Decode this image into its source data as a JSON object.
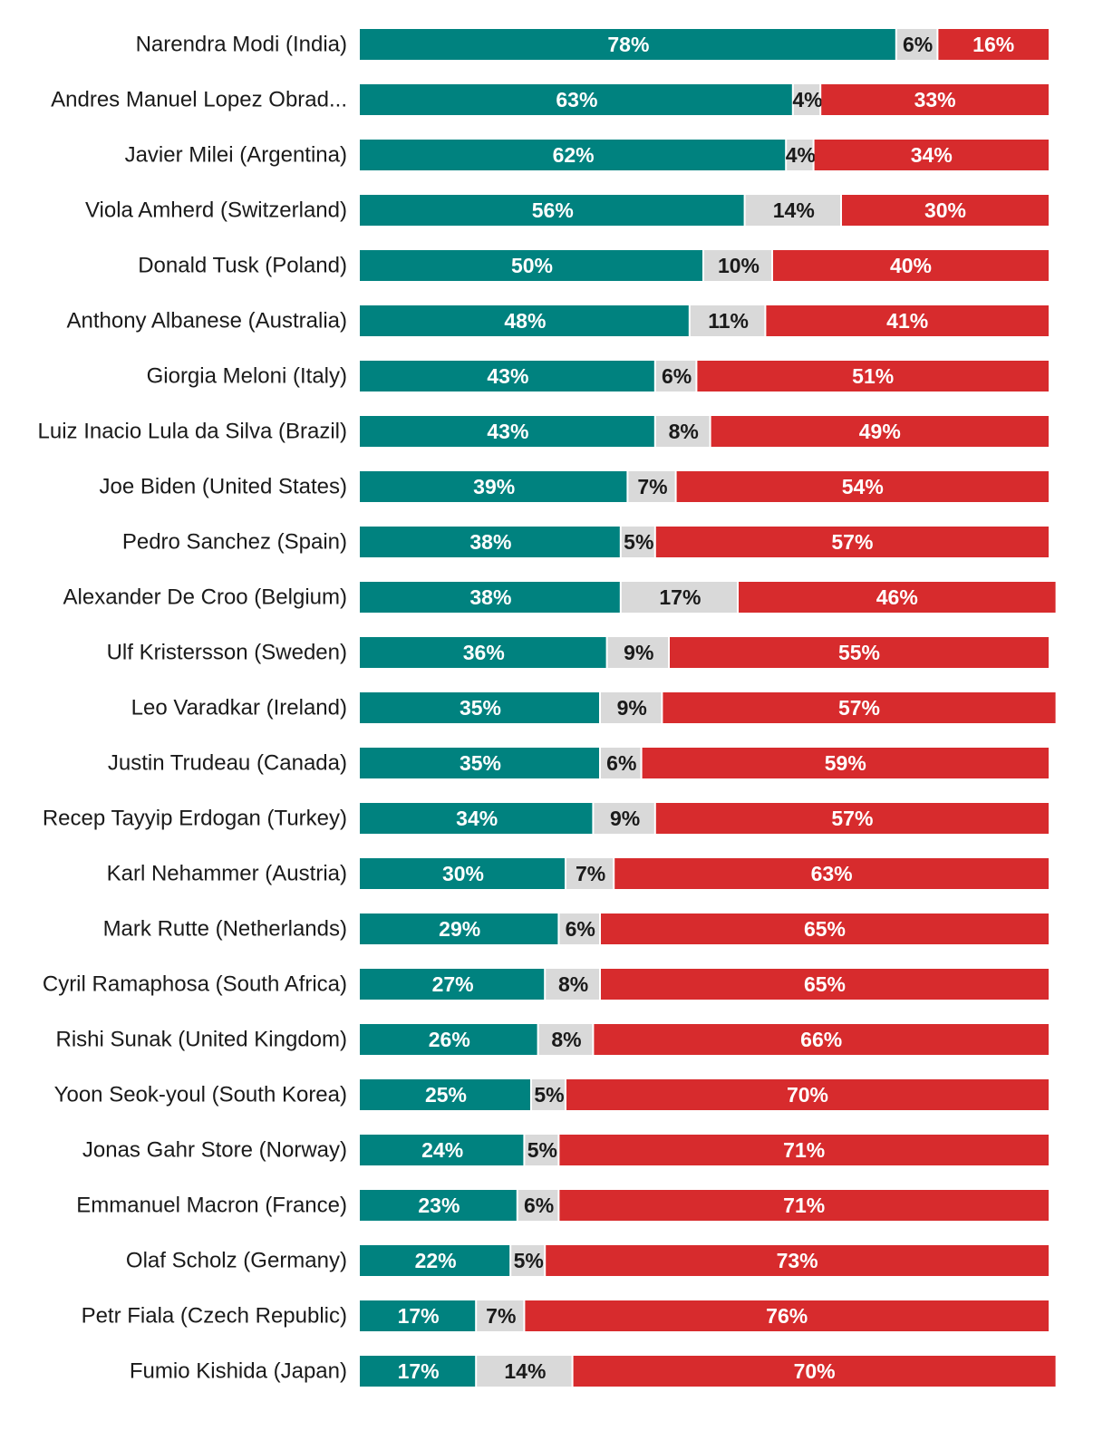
{
  "colors": {
    "approve": "#00827F",
    "unsure": "#D9D9D9",
    "disapprove": "#D72B2D",
    "label_on_dark": "#FFFFFF",
    "label_on_light": "#1A1A1A"
  },
  "chart_data": {
    "type": "bar",
    "orientation": "horizontal",
    "stacked": true,
    "normalized": true,
    "grid": false,
    "legend": "none",
    "title": "",
    "xlabel": "",
    "ylabel": "",
    "xlim": [
      0,
      100
    ],
    "categories": [
      "Narendra Modi (India)",
      "Andres Manuel Lopez Obrad...",
      "Javier Milei (Argentina)",
      "Viola Amherd (Switzerland)",
      "Donald Tusk (Poland)",
      "Anthony Albanese (Australia)",
      "Giorgia Meloni (Italy)",
      "Luiz Inacio Lula da Silva (Brazil)",
      "Joe Biden (United States)",
      "Pedro Sanchez (Spain)",
      "Alexander De Croo (Belgium)",
      "Ulf Kristersson (Sweden)",
      "Leo Varadkar (Ireland)",
      "Justin Trudeau (Canada)",
      "Recep Tayyip Erdogan (Turkey)",
      "Karl Nehammer (Austria)",
      "Mark Rutte (Netherlands)",
      "Cyril Ramaphosa (South Africa)",
      "Rishi Sunak (United Kingdom)",
      "Yoon Seok-youl (South Korea)",
      "Jonas Gahr Store (Norway)",
      "Emmanuel Macron (France)",
      "Olaf Scholz (Germany)",
      "Petr Fiala (Czech Republic)",
      "Fumio Kishida (Japan)"
    ],
    "series": [
      {
        "key": "approve",
        "values": [
          78,
          63,
          62,
          56,
          50,
          48,
          43,
          43,
          39,
          38,
          38,
          36,
          35,
          35,
          34,
          30,
          29,
          27,
          26,
          25,
          24,
          23,
          22,
          17,
          17
        ]
      },
      {
        "key": "unsure",
        "values": [
          6,
          4,
          4,
          14,
          10,
          11,
          6,
          8,
          7,
          5,
          17,
          9,
          9,
          6,
          9,
          7,
          6,
          8,
          8,
          5,
          5,
          6,
          5,
          7,
          14
        ]
      },
      {
        "key": "disapprove",
        "values": [
          16,
          33,
          34,
          30,
          40,
          41,
          51,
          49,
          54,
          57,
          46,
          55,
          57,
          59,
          57,
          63,
          65,
          65,
          66,
          70,
          71,
          71,
          73,
          76,
          70
        ]
      }
    ],
    "value_label_suffix": "%"
  }
}
